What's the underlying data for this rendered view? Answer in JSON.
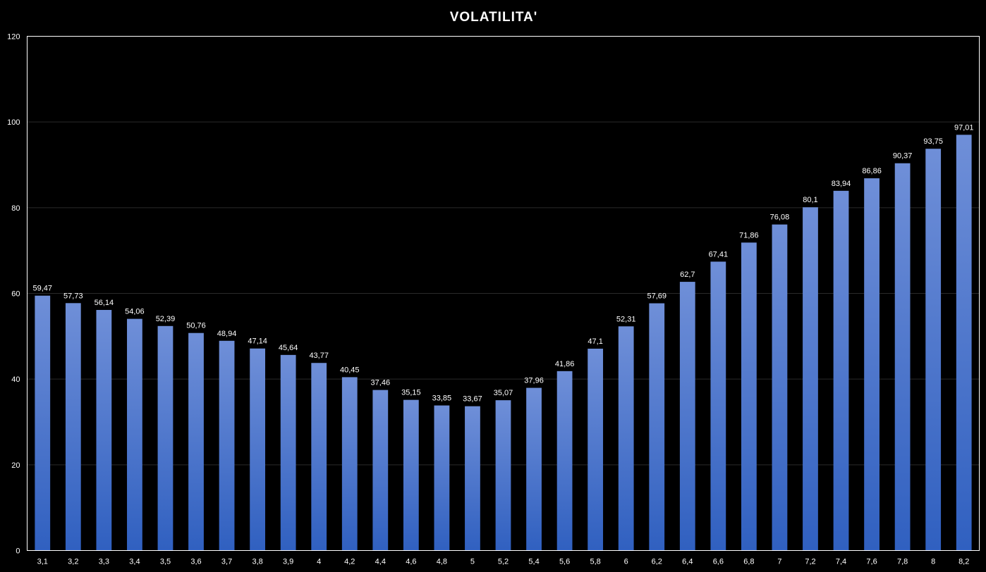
{
  "chart_data": {
    "type": "bar",
    "title": "VOLATILITA'",
    "xlabel": "",
    "ylabel": "",
    "ylim": [
      0,
      120
    ],
    "yticks": [
      0,
      20,
      40,
      60,
      80,
      100,
      120
    ],
    "grid": true,
    "legend": "none",
    "categories": [
      "3,1",
      "3,2",
      "3,3",
      "3,4",
      "3,5",
      "3,6",
      "3,7",
      "3,8",
      "3,9",
      "4",
      "4,2",
      "4,4",
      "4,6",
      "4,8",
      "5",
      "5,2",
      "5,4",
      "5,6",
      "5,8",
      "6",
      "6,2",
      "6,4",
      "6,6",
      "6,8",
      "7",
      "7,2",
      "7,4",
      "7,6",
      "7,8",
      "8",
      "8,2"
    ],
    "values": [
      59.47,
      57.73,
      56.14,
      54.06,
      52.39,
      50.76,
      48.94,
      47.14,
      45.64,
      43.77,
      40.45,
      37.46,
      35.15,
      33.85,
      33.67,
      35.07,
      37.96,
      41.86,
      47.1,
      52.31,
      57.69,
      62.7,
      67.41,
      71.86,
      76.08,
      80.1,
      83.94,
      86.86,
      90.37,
      93.75,
      97.01
    ],
    "data_labels": [
      "59,47",
      "57,73",
      "56,14",
      "54,06",
      "52,39",
      "50,76",
      "48,94",
      "47,14",
      "45,64",
      "43,77",
      "40,45",
      "37,46",
      "35,15",
      "33,85",
      "33,67",
      "35,07",
      "37,96",
      "41,86",
      "47,1",
      "52,31",
      "57,69",
      "62,7",
      "67,41",
      "71,86",
      "76,08",
      "80,1",
      "83,94",
      "86,86",
      "90,37",
      "93,75",
      "97,01"
    ],
    "colors": {
      "background": "#000000",
      "bar_top": "#6f8fd8",
      "bar_bottom": "#3060c0",
      "grid": "#2a2a2a",
      "plot_border": "#ffffff",
      "text": "#ffffff"
    }
  }
}
